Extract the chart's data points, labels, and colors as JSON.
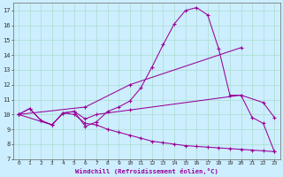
{
  "xlabel": "Windchill (Refroidissement éolien,°C)",
  "bg_color": "#cceeff",
  "line_color": "#990099",
  "grid_color": "#aaddcc",
  "xlim_min": -0.5,
  "xlim_max": 23.5,
  "ylim_min": 7,
  "ylim_max": 17.5,
  "xticks": [
    0,
    1,
    2,
    3,
    4,
    5,
    6,
    7,
    8,
    9,
    10,
    11,
    12,
    13,
    14,
    15,
    16,
    17,
    18,
    19,
    20,
    21,
    22,
    23
  ],
  "yticks": [
    7,
    8,
    9,
    10,
    11,
    12,
    13,
    14,
    15,
    16,
    17
  ],
  "line1_x": [
    0,
    1,
    2,
    3,
    4,
    5,
    6,
    7,
    8,
    9,
    10,
    11,
    12,
    13,
    14,
    15,
    16,
    17,
    18,
    19,
    20,
    21,
    22,
    23
  ],
  "line1_y": [
    10.0,
    10.4,
    9.6,
    9.3,
    10.1,
    10.2,
    9.2,
    9.5,
    10.2,
    10.5,
    10.9,
    11.8,
    13.2,
    14.7,
    16.1,
    17.0,
    17.2,
    16.7,
    14.4,
    11.3,
    11.3,
    9.8,
    9.4,
    7.5
  ],
  "line2_x": [
    0,
    6,
    10,
    20
  ],
  "line2_y": [
    10.0,
    10.5,
    12.0,
    14.5
  ],
  "line3_x": [
    0,
    3,
    4,
    5,
    6,
    7,
    10,
    20,
    22,
    23
  ],
  "line3_y": [
    10.0,
    9.3,
    10.1,
    10.2,
    9.7,
    10.0,
    10.3,
    11.3,
    10.8,
    9.8
  ],
  "line4_x": [
    0,
    1,
    2,
    3,
    4,
    5,
    6,
    7,
    8,
    9,
    10,
    11,
    12,
    13,
    14,
    15,
    16,
    17,
    18,
    19,
    20,
    21,
    22,
    23
  ],
  "line4_y": [
    10.0,
    10.4,
    9.6,
    9.3,
    10.1,
    10.0,
    9.4,
    9.3,
    9.0,
    8.8,
    8.6,
    8.4,
    8.2,
    8.1,
    8.0,
    7.9,
    7.85,
    7.8,
    7.75,
    7.7,
    7.65,
    7.6,
    7.55,
    7.5
  ]
}
